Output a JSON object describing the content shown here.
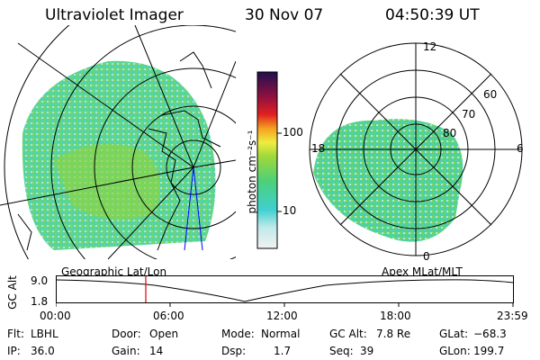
{
  "header": {
    "title": "Ultraviolet Imager",
    "date": "30 Nov 07",
    "time": "04:50:39 UT"
  },
  "left_panel": {
    "label": "Geographic Lat/Lon"
  },
  "right_panel": {
    "label": "Apex MLat/MLT",
    "mlt_labels": [
      "12",
      "6",
      "0",
      "18"
    ],
    "lat_labels": [
      "60",
      "70",
      "80"
    ]
  },
  "colorbar": {
    "unit": "photon cm⁻²s⁻¹",
    "tick_labels": [
      "100",
      "10"
    ]
  },
  "timeline": {
    "ylabel": "GC Alt",
    "y_ticks": [
      "9.0",
      "1.8"
    ],
    "x_ticks": [
      "00:00",
      "06:00",
      "12:00",
      "18:00",
      "23:59"
    ]
  },
  "info": {
    "row1": [
      {
        "key": "Flt:",
        "value": "LBHL"
      },
      {
        "key": "Door:",
        "value": "Open"
      },
      {
        "key": "Mode:",
        "value": "Normal"
      },
      {
        "key": "GC Alt:",
        "value": "7.8 Re"
      },
      {
        "key": "GLat:",
        "value": "−68.3"
      }
    ],
    "row2": [
      {
        "key": "IP:",
        "value": "36.0"
      },
      {
        "key": "Gain:",
        "value": "14"
      },
      {
        "key": "Dsp:",
        "value": "1.7"
      },
      {
        "key": "Seq:",
        "value": "39"
      },
      {
        "key": "GLon:",
        "value": "199.7"
      }
    ]
  }
}
